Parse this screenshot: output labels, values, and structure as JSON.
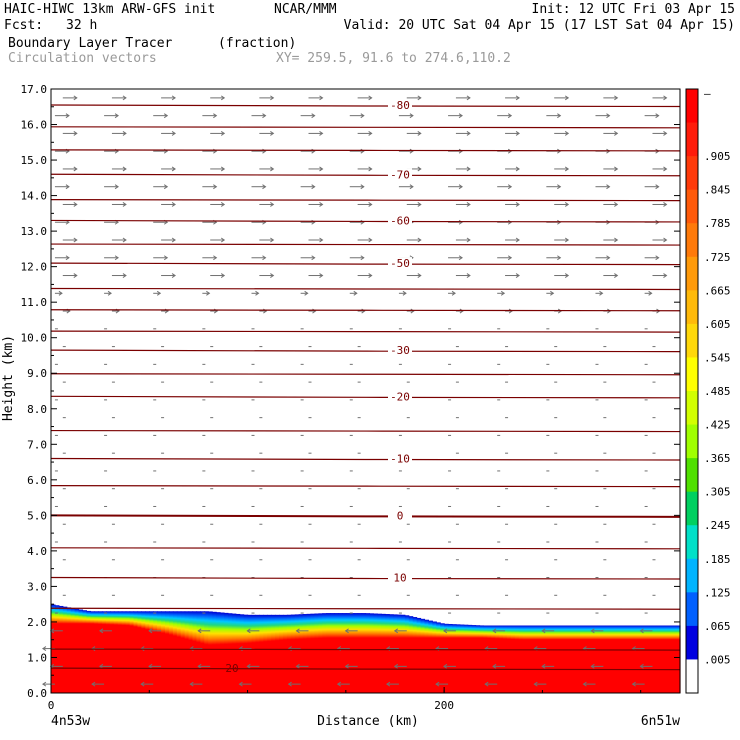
{
  "header": {
    "model": "HAIC-HIWC 13km ARW-GFS init",
    "org": "NCAR/MMM",
    "init": "Init: 12 UTC Fri 03 Apr 15",
    "fcst_label": "Fcst:",
    "fcst_value": "32 h",
    "valid": "Valid: 20 UTC Sat 04 Apr 15 (17 LST Sat 04 Apr 15)",
    "field": "Boundary Layer Tracer",
    "field_units": "(fraction)",
    "overlay": "Circulation vectors",
    "xy": "XY= 259.5, 91.6 to 274.6,110.2"
  },
  "chart_data": {
    "type": "heatmap",
    "xlabel": "Distance (km)",
    "ylabel": "Height (km)",
    "x_ticks": [
      "0",
      "200"
    ],
    "x_tick_values": [
      0,
      200
    ],
    "x_endpoints": [
      "4n53w",
      "6n51w"
    ],
    "xlim": [
      0,
      320
    ],
    "ylim": [
      0,
      17
    ],
    "y_ticks": [
      "0.0",
      "1.0",
      "2.0",
      "3.0",
      "4.0",
      "5.0",
      "6.0",
      "7.0",
      "8.0",
      "9.0",
      "10.0",
      "11.0",
      "12.0",
      "13.0",
      "14.0",
      "15.0",
      "16.0",
      "17.0"
    ],
    "colorbar": {
      "labels": [
        "–",
        ".905",
        ".845",
        ".785",
        ".725",
        ".665",
        ".605",
        ".545",
        ".485",
        ".425",
        ".365",
        ".305",
        ".245",
        ".185",
        ".125",
        ".065",
        ".005"
      ],
      "colors": [
        "#ff0000",
        "#ff1c0a",
        "#ff3a0a",
        "#ff5a0a",
        "#ff7a0a",
        "#ff9a0a",
        "#ffba0a",
        "#ffd80a",
        "#ffff00",
        "#d2ff00",
        "#a0ff00",
        "#50e000",
        "#00d060",
        "#00e0c8",
        "#00b4ff",
        "#0060ff",
        "#0000e0",
        "#ffffff"
      ]
    },
    "tracer_top_km": {
      "x_km": [
        0,
        20,
        40,
        60,
        80,
        100,
        120,
        140,
        160,
        180,
        200,
        220,
        240,
        260,
        280,
        300,
        320
      ],
      "blue_top": [
        2.5,
        2.3,
        2.3,
        2.3,
        2.3,
        2.2,
        2.2,
        2.25,
        2.25,
        2.2,
        1.95,
        1.9,
        1.9,
        1.9,
        1.9,
        1.9,
        1.9
      ],
      "red_top": [
        1.95,
        1.95,
        1.9,
        1.65,
        1.35,
        1.4,
        1.5,
        1.55,
        1.55,
        1.55,
        1.55,
        1.55,
        1.5,
        1.5,
        1.5,
        1.5,
        1.5
      ]
    },
    "temperature_contours": [
      {
        "label": "-80",
        "height_km": 16.55
      },
      {
        "label": "-70",
        "height_km": 14.6
      },
      {
        "label": "-60",
        "height_km": 13.3
      },
      {
        "label": "-50",
        "height_km": 12.1
      },
      {
        "label": "-30",
        "height_km": 9.65
      },
      {
        "label": "-20",
        "height_km": 8.35
      },
      {
        "label": "-10",
        "height_km": 6.6
      },
      {
        "label": "0",
        "height_km": 5.0
      },
      {
        "label": "10",
        "height_km": 3.25
      },
      {
        "label": "20",
        "height_km": 0.7
      }
    ],
    "unlabeled_contour_heights_km": [
      15.95,
      15.3,
      13.9,
      12.65,
      11.4,
      10.8,
      10.2,
      9.0,
      7.4,
      5.85,
      4.1,
      2.4,
      1.25
    ]
  }
}
